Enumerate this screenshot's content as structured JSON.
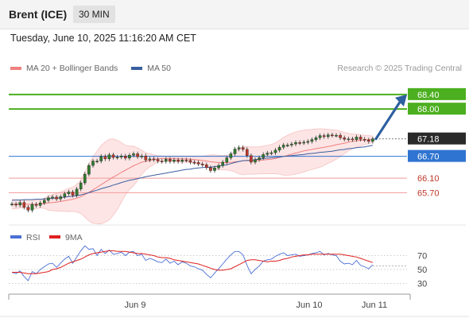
{
  "header": {
    "title": "Brent (ICE)",
    "timeframe": "30 MIN"
  },
  "datetime": "Tuesday, June 10, 2025 11:16:20 AM CET",
  "legend": [
    {
      "label": "MA 20 + Bollinger Bands",
      "color": "#f08080"
    },
    {
      "label": "MA 50",
      "color": "#3a5fa0"
    }
  ],
  "credit": "Research © 2025 Trading Central",
  "colors": {
    "up": "#2f7d2f",
    "down": "#c0392b",
    "resistance": "#4caf1f",
    "current": "#2a2a2a",
    "pivot": "#2f74d0",
    "support": "#f29a9a",
    "arrow": "#2e5fa0"
  },
  "chart_data": [
    {
      "type": "candlestick",
      "y_range": [
        64.9,
        68.9
      ],
      "x_ticks": [
        "Jun 9",
        "Jun 10",
        "Jun 11"
      ],
      "price_levels": [
        {
          "value": 68.4,
          "label": "68.40",
          "kind": "resistance"
        },
        {
          "value": 68.0,
          "label": "68.00",
          "kind": "resistance"
        },
        {
          "value": 67.18,
          "label": "67.18",
          "kind": "current"
        },
        {
          "value": 66.7,
          "label": "66.70",
          "kind": "pivot"
        },
        {
          "value": 66.1,
          "label": "66.10",
          "kind": "support"
        },
        {
          "value": 65.7,
          "label": "65.70",
          "kind": "support"
        }
      ],
      "close": [
        65.39,
        65.36,
        65.43,
        65.3,
        65.22,
        65.38,
        65.35,
        65.42,
        65.49,
        65.56,
        65.58,
        65.53,
        65.59,
        65.67,
        65.72,
        65.63,
        65.8,
        65.97,
        66.21,
        66.45,
        66.57,
        66.57,
        66.7,
        66.63,
        66.74,
        66.67,
        66.68,
        66.71,
        66.65,
        66.73,
        66.77,
        66.69,
        66.71,
        66.6,
        66.63,
        66.61,
        66.57,
        66.56,
        66.62,
        66.56,
        66.6,
        66.56,
        66.6,
        66.59,
        66.54,
        66.53,
        66.49,
        66.47,
        66.39,
        66.31,
        66.38,
        66.45,
        66.54,
        66.66,
        66.77,
        66.9,
        66.94,
        66.89,
        66.72,
        66.54,
        66.61,
        66.66,
        66.75,
        66.79,
        66.8,
        66.87,
        66.95,
        67.01,
        67.01,
        67.04,
        67.08,
        67.07,
        67.09,
        67.11,
        67.16,
        67.21,
        67.27,
        67.24,
        67.29,
        67.28,
        67.28,
        67.21,
        67.17,
        67.18,
        67.16,
        67.23,
        67.17,
        67.15,
        67.11,
        67.18
      ],
      "ma20": [
        65.38,
        65.38,
        65.39,
        65.39,
        65.38,
        65.38,
        65.38,
        65.39,
        65.41,
        65.42,
        65.43,
        65.44,
        65.46,
        65.48,
        65.5,
        65.52,
        65.55,
        65.59,
        65.65,
        65.71,
        65.78,
        65.85,
        65.92,
        65.99,
        66.06,
        66.13,
        66.19,
        66.26,
        66.32,
        66.38,
        66.44,
        66.49,
        66.54,
        66.56,
        66.59,
        66.61,
        66.63,
        66.64,
        66.64,
        66.64,
        66.64,
        66.63,
        66.63,
        66.63,
        66.62,
        66.61,
        66.6,
        66.59,
        66.57,
        66.55,
        66.54,
        66.53,
        66.52,
        66.53,
        66.53,
        66.55,
        66.56,
        66.58,
        66.58,
        66.58,
        66.59,
        66.59,
        66.6,
        66.61,
        66.62,
        66.64,
        66.67,
        66.7,
        66.73,
        66.76,
        66.79,
        66.82,
        66.85,
        66.87,
        66.89,
        66.91,
        66.93,
        66.95,
        66.97,
        66.99,
        67.02,
        67.04,
        67.06,
        67.09,
        67.11,
        67.13,
        67.14,
        67.15,
        67.16,
        67.17
      ],
      "bb_upper": [
        65.52,
        65.51,
        65.5,
        65.5,
        65.51,
        65.5,
        65.5,
        65.5,
        65.55,
        65.62,
        65.65,
        65.68,
        65.72,
        65.77,
        65.82,
        65.85,
        65.93,
        66.06,
        66.27,
        66.5,
        66.69,
        66.84,
        67.0,
        67.09,
        67.17,
        67.18,
        67.14,
        67.08,
        67.0,
        66.98,
        66.98,
        66.93,
        66.87,
        66.8,
        66.77,
        66.74,
        66.72,
        66.71,
        66.71,
        66.71,
        66.71,
        66.71,
        66.71,
        66.71,
        66.71,
        66.71,
        66.71,
        66.71,
        66.72,
        66.74,
        66.74,
        66.73,
        66.72,
        66.73,
        66.76,
        66.83,
        66.91,
        66.97,
        66.96,
        66.96,
        66.96,
        66.96,
        66.98,
        67.0,
        67.03,
        67.07,
        67.14,
        67.22,
        67.28,
        67.33,
        67.37,
        67.4,
        67.42,
        67.43,
        67.44,
        67.45,
        67.46,
        67.45,
        67.44,
        67.43,
        67.42,
        67.39,
        67.36,
        67.33,
        67.31,
        67.31,
        67.29,
        67.28,
        67.27,
        67.26
      ],
      "bb_lower": [
        65.25,
        65.26,
        65.28,
        65.28,
        65.26,
        65.26,
        65.26,
        65.28,
        65.27,
        65.22,
        65.21,
        65.2,
        65.19,
        65.19,
        65.18,
        65.19,
        65.17,
        65.13,
        65.03,
        64.92,
        64.86,
        64.85,
        64.84,
        64.89,
        64.95,
        65.08,
        65.24,
        65.44,
        65.64,
        65.79,
        65.89,
        66.04,
        66.2,
        66.32,
        66.41,
        66.48,
        66.54,
        66.56,
        66.57,
        66.57,
        66.56,
        66.55,
        66.54,
        66.54,
        66.53,
        66.51,
        66.49,
        66.47,
        66.42,
        66.36,
        66.34,
        66.34,
        66.33,
        66.32,
        66.31,
        66.27,
        66.22,
        66.19,
        66.21,
        66.21,
        66.21,
        66.22,
        66.22,
        66.22,
        66.22,
        66.22,
        66.21,
        66.18,
        66.18,
        66.19,
        66.21,
        66.24,
        66.27,
        66.31,
        66.34,
        66.37,
        66.4,
        66.45,
        66.51,
        66.56,
        66.62,
        66.69,
        66.77,
        66.85,
        66.91,
        66.95,
        66.99,
        67.02,
        67.05,
        67.08
      ],
      "ma50": [
        65.49,
        65.5,
        65.5,
        65.51,
        65.51,
        65.51,
        65.52,
        65.52,
        65.53,
        65.54,
        65.55,
        65.55,
        65.56,
        65.58,
        65.59,
        65.6,
        65.62,
        65.64,
        65.67,
        65.7,
        65.74,
        65.77,
        65.81,
        65.84,
        65.87,
        65.91,
        65.94,
        65.98,
        66.01,
        66.04,
        66.06,
        66.09,
        66.11,
        66.14,
        66.16,
        66.18,
        66.2,
        66.22,
        66.24,
        66.26,
        66.28,
        66.3,
        66.32,
        66.34,
        66.35,
        66.37,
        66.38,
        66.39,
        66.4,
        66.4,
        66.42,
        66.43,
        66.45,
        66.47,
        66.5,
        66.53,
        66.56,
        66.58,
        66.59,
        66.59,
        66.61,
        66.62,
        66.64,
        66.65,
        66.66,
        66.67,
        66.68,
        66.7,
        66.71,
        66.72,
        66.73,
        66.74,
        66.75,
        66.77,
        66.78,
        66.79,
        66.81,
        66.82,
        66.83,
        66.84,
        66.86,
        66.88,
        66.89,
        66.91,
        66.92,
        66.94,
        66.95,
        66.96,
        66.98,
        67.0
      ]
    },
    {
      "type": "line",
      "y_range": [
        18,
        82
      ],
      "y_ticks": [
        70,
        50,
        30
      ],
      "series": [
        {
          "name": "RSI",
          "color": "#4a6fd4",
          "values": [
            46,
            44,
            48,
            40,
            34,
            47,
            44,
            50,
            54,
            58,
            59,
            53,
            59,
            65,
            69,
            59,
            68,
            77,
            84,
            79,
            80,
            70,
            79,
            73,
            78,
            72,
            73,
            75,
            70,
            75,
            76,
            70,
            72,
            63,
            66,
            64,
            61,
            60,
            65,
            59,
            62,
            57,
            61,
            59,
            55,
            54,
            51,
            49,
            43,
            38,
            45,
            51,
            58,
            65,
            71,
            76,
            76,
            71,
            56,
            44,
            50,
            55,
            62,
            64,
            65,
            69,
            72,
            74,
            70,
            71,
            72,
            69,
            70,
            71,
            73,
            74,
            76,
            71,
            73,
            71,
            70,
            62,
            58,
            59,
            57,
            63,
            56,
            54,
            51,
            57
          ]
        },
        {
          "name": "9MA",
          "color": "#e02020",
          "values": [
            46,
            46,
            46,
            45,
            44,
            44,
            44,
            45,
            46,
            47,
            50,
            51,
            53,
            56,
            59,
            61,
            63,
            65,
            68,
            71,
            73,
            74,
            75,
            76,
            77,
            77,
            76,
            76,
            76,
            75,
            74,
            73,
            73,
            72,
            71,
            70,
            68,
            67,
            67,
            66,
            64,
            63,
            62,
            61,
            60,
            59,
            58,
            56,
            54,
            52,
            50,
            49,
            49,
            50,
            51,
            54,
            57,
            60,
            63,
            64,
            64,
            63,
            62,
            61,
            62,
            62,
            63,
            65,
            66,
            68,
            69,
            70,
            71,
            71,
            72,
            72,
            72,
            72,
            72,
            72,
            72,
            72,
            71,
            70,
            69,
            68,
            66,
            64,
            62,
            60
          ]
        }
      ]
    }
  ]
}
